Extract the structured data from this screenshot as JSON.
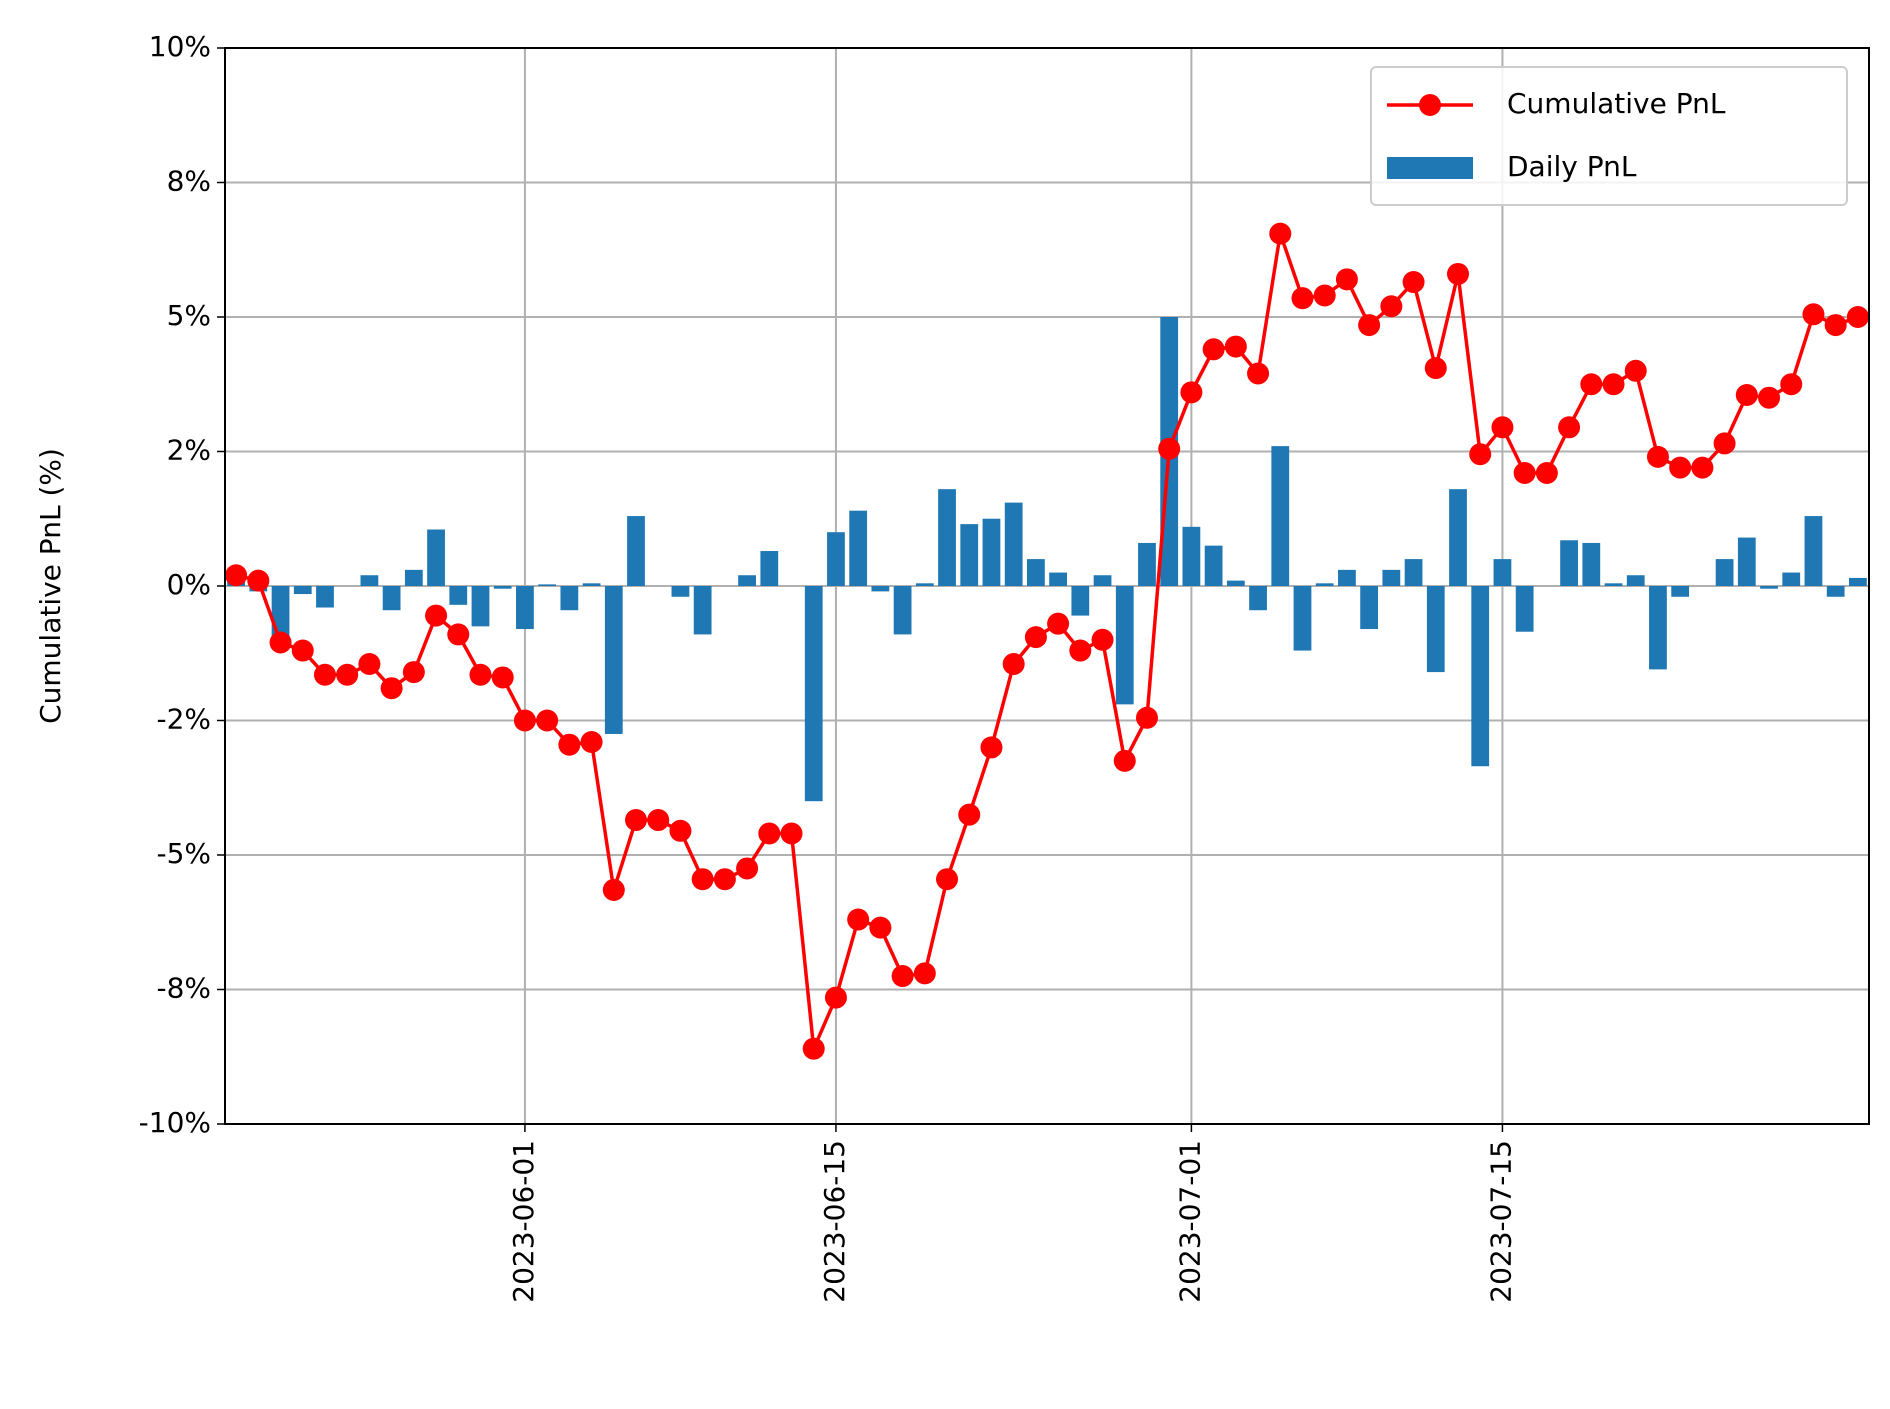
{
  "chart_data": {
    "type": "bar_line",
    "ylabel": "Cumulative PnL (%)",
    "x": [
      "2023-05-19",
      "2023-05-20",
      "2023-05-21",
      "2023-05-22",
      "2023-05-23",
      "2023-05-24",
      "2023-05-25",
      "2023-05-26",
      "2023-05-27",
      "2023-05-28",
      "2023-05-29",
      "2023-05-30",
      "2023-05-31",
      "2023-06-01",
      "2023-06-02",
      "2023-06-03",
      "2023-06-04",
      "2023-06-05",
      "2023-06-06",
      "2023-06-07",
      "2023-06-08",
      "2023-06-09",
      "2023-06-10",
      "2023-06-11",
      "2023-06-12",
      "2023-06-13",
      "2023-06-14",
      "2023-06-15",
      "2023-06-16",
      "2023-06-17",
      "2023-06-18",
      "2023-06-19",
      "2023-06-20",
      "2023-06-21",
      "2023-06-22",
      "2023-06-23",
      "2023-06-24",
      "2023-06-25",
      "2023-06-26",
      "2023-06-27",
      "2023-06-28",
      "2023-06-29",
      "2023-06-30",
      "2023-07-01",
      "2023-07-02",
      "2023-07-03",
      "2023-07-04",
      "2023-07-05",
      "2023-07-06",
      "2023-07-07",
      "2023-07-08",
      "2023-07-09",
      "2023-07-10",
      "2023-07-11",
      "2023-07-12",
      "2023-07-13",
      "2023-07-14",
      "2023-07-15",
      "2023-07-16",
      "2023-07-17",
      "2023-07-18",
      "2023-07-19",
      "2023-07-20",
      "2023-07-21",
      "2023-07-22",
      "2023-07-23",
      "2023-07-24",
      "2023-07-25",
      "2023-07-26",
      "2023-07-27",
      "2023-07-28",
      "2023-07-29",
      "2023-07-30",
      "2023-07-31"
    ],
    "series": [
      {
        "name": "Cumulative PnL",
        "type": "line",
        "color": "#ff0000",
        "values": [
          0.2,
          0.1,
          -1.05,
          -1.2,
          -1.65,
          -1.65,
          -1.45,
          -1.9,
          -1.6,
          -0.55,
          -0.9,
          -1.65,
          -1.7,
          -2.5,
          -2.5,
          -2.95,
          -2.9,
          -5.65,
          -4.35,
          -4.35,
          -4.55,
          -5.45,
          -5.45,
          -5.25,
          -4.6,
          -4.6,
          -8.6,
          -7.65,
          -6.2,
          -6.35,
          -7.25,
          -7.2,
          -5.45,
          -4.25,
          -3.0,
          -1.45,
          -0.95,
          -0.7,
          -1.2,
          -1.0,
          -3.25,
          -2.45,
          2.55,
          3.6,
          4.4,
          4.45,
          3.95,
          6.55,
          5.35,
          5.4,
          5.7,
          4.85,
          5.2,
          5.65,
          4.05,
          5.8,
          2.45,
          2.95,
          2.1,
          2.1,
          2.95,
          3.75,
          3.75,
          4.0,
          2.4,
          2.2,
          2.2,
          2.65,
          3.55,
          3.5,
          3.75,
          5.05,
          4.85,
          5.0
        ]
      },
      {
        "name": "Daily PnL",
        "type": "bar",
        "color": "#1f77b4",
        "values": [
          0.2,
          -0.1,
          -0.95,
          -0.15,
          -0.4,
          0,
          0.2,
          -0.45,
          0.3,
          1.05,
          -0.35,
          -0.75,
          -0.05,
          -0.8,
          0.03,
          -0.45,
          0.05,
          -2.75,
          1.3,
          0,
          -0.2,
          -0.9,
          0,
          0.2,
          0.65,
          0,
          -4.0,
          1.0,
          1.4,
          -0.1,
          -0.9,
          0.05,
          1.8,
          1.15,
          1.25,
          1.55,
          0.5,
          0.25,
          -0.55,
          0.2,
          -2.2,
          0.8,
          5.0,
          1.1,
          0.75,
          0.1,
          -0.45,
          2.6,
          -1.2,
          0.05,
          0.3,
          -0.8,
          0.3,
          0.5,
          -1.6,
          1.8,
          -3.35,
          0.5,
          -0.85,
          0,
          0.85,
          0.8,
          0.05,
          0.2,
          -1.55,
          -0.2,
          0,
          0.5,
          0.9,
          -0.05,
          0.25,
          1.3,
          -0.2,
          0.15
        ]
      }
    ],
    "xlim": [
      "2023-05-18T12:00",
      "2023-07-31T12:00"
    ],
    "xticks": [
      "2023-06-01",
      "2023-06-15",
      "2023-07-01",
      "2023-07-15"
    ],
    "ylim": [
      -10,
      10
    ],
    "yticks": [
      {
        "value": -10,
        "label": "-10%"
      },
      {
        "value": -7.5,
        "label": "-8%"
      },
      {
        "value": -5,
        "label": "-5%"
      },
      {
        "value": -2.5,
        "label": "-2%"
      },
      {
        "value": 0,
        "label": "0%"
      },
      {
        "value": 2.5,
        "label": "2%"
      },
      {
        "value": 5,
        "label": "5%"
      },
      {
        "value": 7.5,
        "label": "8%"
      },
      {
        "value": 10,
        "label": "10%"
      }
    ],
    "grid": true,
    "legend": "upper right"
  }
}
